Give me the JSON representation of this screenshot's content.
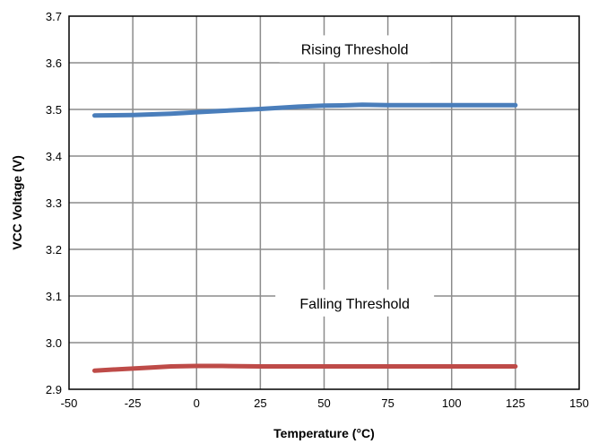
{
  "chart_data": {
    "type": "line",
    "xlabel": "Temperature (°C)",
    "ylabel": "VCC Voltage (V)",
    "xlim": [
      -50,
      150
    ],
    "ylim": [
      2.9,
      3.7
    ],
    "xticks": [
      -50,
      -25,
      0,
      25,
      50,
      75,
      100,
      125,
      150
    ],
    "yticks": [
      2.9,
      3.0,
      3.1,
      3.2,
      3.3,
      3.4,
      3.5,
      3.6,
      3.7
    ],
    "xtick_labels": [
      "-50",
      "-25",
      "0",
      "25",
      "50",
      "75",
      "100",
      "125",
      "150"
    ],
    "ytick_labels": [
      "2.9",
      "3.0",
      "3.1",
      "3.2",
      "3.3",
      "3.4",
      "3.5",
      "3.6",
      "3.7"
    ],
    "grid": true,
    "series": [
      {
        "color": "#4a7ebb",
        "x": [
          -40,
          -25,
          -10,
          0,
          10,
          25,
          40,
          50,
          60,
          65,
          75,
          90,
          100,
          110,
          125
        ],
        "y": [
          3.487,
          3.488,
          3.491,
          3.494,
          3.497,
          3.501,
          3.506,
          3.508,
          3.509,
          3.51,
          3.509,
          3.509,
          3.509,
          3.509,
          3.509
        ]
      },
      {
        "color": "#be4b48",
        "x": [
          -40,
          -30,
          -20,
          -10,
          0,
          10,
          25,
          40,
          50,
          75,
          100,
          125
        ],
        "y": [
          2.94,
          2.943,
          2.946,
          2.949,
          2.95,
          2.95,
          2.949,
          2.949,
          2.949,
          2.949,
          2.949,
          2.949
        ]
      }
    ],
    "annotations": [
      {
        "text": "Rising Threshold",
        "x": 62,
        "y": 3.63
      },
      {
        "text": "Falling Threshold",
        "x": 62,
        "y": 3.085
      }
    ]
  }
}
